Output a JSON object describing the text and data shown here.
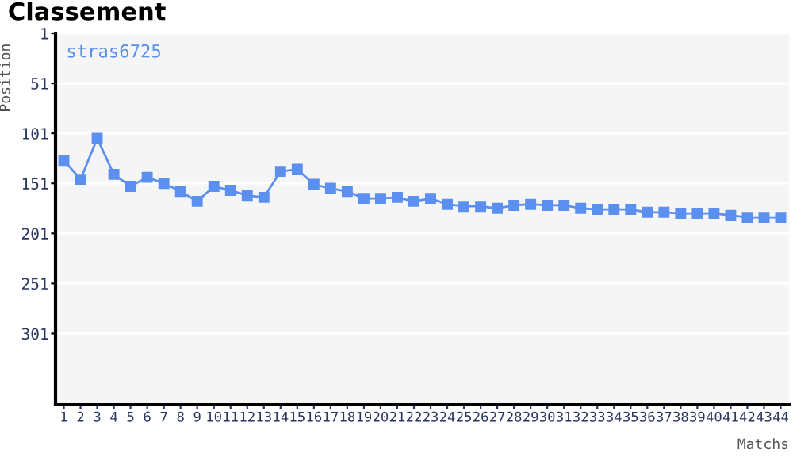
{
  "chart_data": {
    "type": "line",
    "title": "Classement",
    "xlabel": "Matchs",
    "ylabel": "Position",
    "categories": [
      "1",
      "2",
      "3",
      "4",
      "5",
      "6",
      "7",
      "8",
      "9",
      "10",
      "11",
      "12",
      "13",
      "14",
      "15",
      "16",
      "17",
      "18",
      "19",
      "20",
      "21",
      "22",
      "23",
      "24",
      "25",
      "26",
      "27",
      "28",
      "29",
      "30",
      "31",
      "32",
      "33",
      "34",
      "35",
      "36",
      "37",
      "38",
      "39",
      "40",
      "41",
      "42",
      "43",
      "44"
    ],
    "series": [
      {
        "name": "stras6725",
        "color": "#5b8ff0",
        "values": [
          128,
          147,
          106,
          142,
          154,
          145,
          151,
          159,
          169,
          154,
          158,
          163,
          165,
          139,
          137,
          152,
          156,
          159,
          166,
          166,
          165,
          169,
          166,
          172,
          174,
          174,
          176,
          173,
          172,
          173,
          173,
          176,
          177,
          177,
          177,
          180,
          180,
          181,
          181,
          181,
          183,
          185,
          185,
          185
        ]
      }
    ],
    "ylim": [
      372,
      1
    ],
    "yticks": [
      1,
      51,
      101,
      151,
      201,
      251,
      301
    ],
    "grid": "y",
    "marker": "square",
    "line_style": "solid",
    "legend": "top left"
  }
}
